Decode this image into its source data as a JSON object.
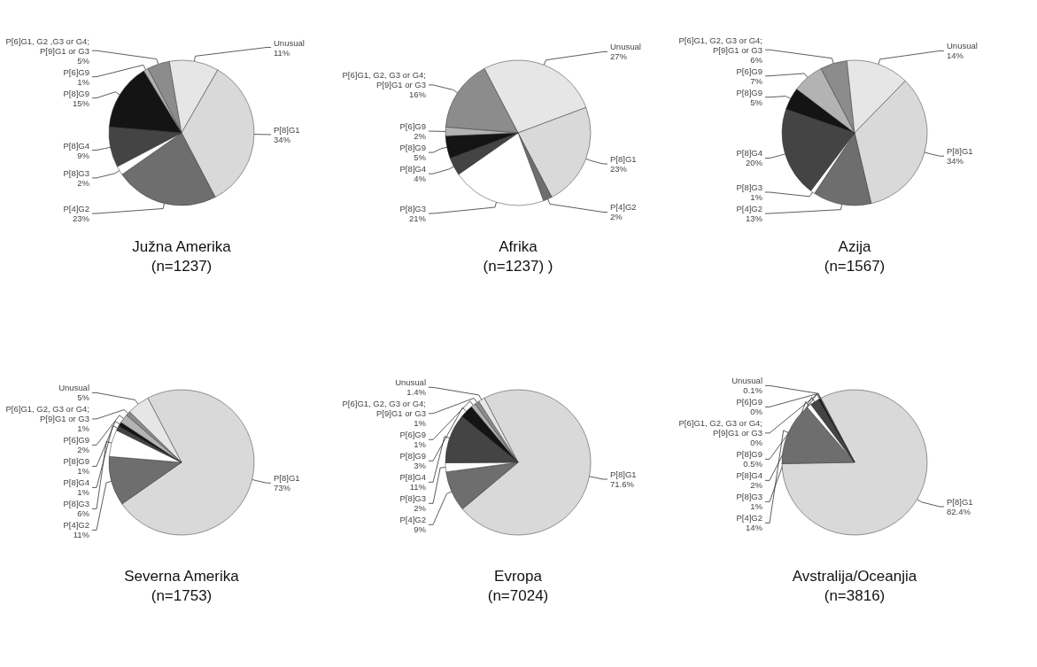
{
  "chart_data": [
    {
      "type": "pie",
      "title": "Južna Amerika",
      "subtitle": "(n=1237)",
      "categories": [
        "P[6]G1, G2 ,G3 or G4; P[9]G1 or G3",
        "Unusual",
        "P[8]G1",
        "P[4]G2",
        "P[8]G3",
        "P[8]G4",
        "P[8]G9",
        "P[6]G9"
      ],
      "values": [
        5,
        11,
        34,
        23,
        2,
        9,
        15,
        1
      ],
      "value_labels": [
        "5%",
        "11%",
        "34%",
        "23%",
        "2%",
        "9%",
        "15%",
        "1%"
      ],
      "colors": [
        "#8c8c8c",
        "#e6e6e6",
        "#d9d9d9",
        "#6e6e6e",
        "#ffffff",
        "#444444",
        "#141414",
        "#b3b3b3"
      ]
    },
    {
      "type": "pie",
      "title": "Afrika",
      "subtitle": "(n=1237) )",
      "categories": [
        "Unusual",
        "P[8]G1",
        "P[4]G2",
        "P[8]G3",
        "P[8]G4",
        "P[8]G9",
        "P[6]G9",
        "P[6]G1, G2, G3 or G4; P[9]G1 or G3"
      ],
      "values": [
        27,
        23,
        2,
        21,
        4,
        5,
        2,
        16
      ],
      "value_labels": [
        "27%",
        "23%",
        "2%",
        "21%",
        "4%",
        "5%",
        "2%",
        "16%"
      ],
      "colors": [
        "#e6e6e6",
        "#d9d9d9",
        "#6e6e6e",
        "#ffffff",
        "#444444",
        "#141414",
        "#b3b3b3",
        "#8c8c8c"
      ]
    },
    {
      "type": "pie",
      "title": "Azija",
      "subtitle": "(n=1567)",
      "categories": [
        "P[6]G1, G2, G3 or G4; P[9]G1 or G3",
        "Unusual",
        "P[8]G1",
        "P[4]G2",
        "P[8]G3",
        "P[8]G4",
        "P[8]G9",
        "P[6]G9"
      ],
      "values": [
        6,
        14,
        34,
        13,
        1,
        20,
        5,
        7
      ],
      "value_labels": [
        "6%",
        "14%",
        "34%",
        "13%",
        "1%",
        "20%",
        "5%",
        "7%"
      ],
      "colors": [
        "#8c8c8c",
        "#e6e6e6",
        "#d9d9d9",
        "#6e6e6e",
        "#ffffff",
        "#444444",
        "#141414",
        "#b3b3b3"
      ]
    },
    {
      "type": "pie",
      "title": "Severna Amerika",
      "subtitle": "(n=1753)",
      "categories": [
        "P[8]G1",
        "P[4]G2",
        "P[8]G3",
        "P[8]G4",
        "P[8]G9",
        "P[6]G9",
        "P[6]G1, G2, G3 or G4; P[9]G1 or G3",
        "Unusual"
      ],
      "values": [
        73,
        11,
        6,
        1,
        1,
        2,
        1,
        5
      ],
      "value_labels": [
        "73%",
        "11%",
        "6%",
        "1%",
        "1%",
        "2%",
        "1%",
        "5%"
      ],
      "colors": [
        "#d9d9d9",
        "#6e6e6e",
        "#ffffff",
        "#444444",
        "#141414",
        "#b3b3b3",
        "#8c8c8c",
        "#e6e6e6"
      ]
    },
    {
      "type": "pie",
      "title": "Evropa",
      "subtitle": "(n=7024)",
      "categories": [
        "P[8]G1",
        "P[4]G2",
        "P[8]G3",
        "P[8]G4",
        "P[8]G9",
        "P[6]G9",
        "P[6]G1, G2, G3 or G4; P[9]G1 or G3",
        "Unusual"
      ],
      "values": [
        71.6,
        9,
        2,
        11,
        3,
        1,
        1,
        1.4
      ],
      "value_labels": [
        "71.6%",
        "9%",
        "2%",
        "11%",
        "3%",
        "1%",
        "1%",
        "1.4%"
      ],
      "colors": [
        "#d9d9d9",
        "#6e6e6e",
        "#ffffff",
        "#444444",
        "#141414",
        "#b3b3b3",
        "#8c8c8c",
        "#e6e6e6"
      ]
    },
    {
      "type": "pie",
      "title": "Avstralija/Oceanjia",
      "subtitle": "(n=3816)",
      "categories": [
        "P[8]G1",
        "P[4]G2",
        "P[8]G3",
        "P[8]G4",
        "P[8]G9",
        "P[6]G9",
        "P[6]G1, G2, G3 or G4; P[9]G1 or G3",
        "Unusual"
      ],
      "values": [
        82.4,
        14,
        1,
        2,
        0.5,
        0,
        0,
        0.1
      ],
      "value_labels": [
        "82.4%",
        "14%",
        "1%",
        "2%",
        "0.5%",
        "0%",
        "0%",
        "0.1%"
      ],
      "colors": [
        "#d9d9d9",
        "#6e6e6e",
        "#ffffff",
        "#444444",
        "#141414",
        "#b3b3b3",
        "#8c8c8c",
        "#e6e6e6"
      ]
    }
  ]
}
